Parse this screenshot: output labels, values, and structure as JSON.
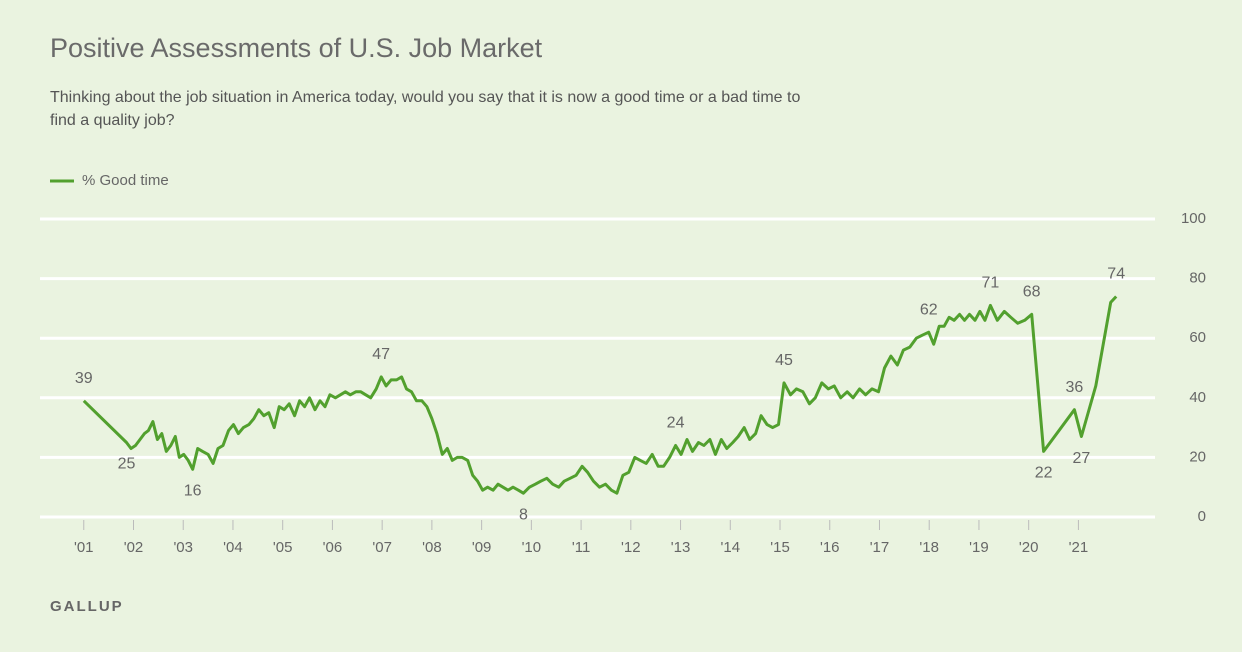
{
  "chart_data": {
    "type": "line",
    "title": "Positive Assessments of U.S. Job Market",
    "subtitle": [
      "Thinking about the job situation in America today, would you say that it is now a good time or a bad time to",
      "find a quality job?"
    ],
    "source": "GALLUP",
    "xlim": [
      2000.12,
      2022.54
    ],
    "xticks": [
      {
        "value": 2001,
        "label": "'01"
      },
      {
        "value": 2002,
        "label": "'02"
      },
      {
        "value": 2003,
        "label": "'03"
      },
      {
        "value": 2004,
        "label": "'04"
      },
      {
        "value": 2005,
        "label": "'05"
      },
      {
        "value": 2006,
        "label": "'06"
      },
      {
        "value": 2007,
        "label": "'07"
      },
      {
        "value": 2008,
        "label": "'08"
      },
      {
        "value": 2009,
        "label": "'09"
      },
      {
        "value": 2010,
        "label": "'10"
      },
      {
        "value": 2011,
        "label": "'11"
      },
      {
        "value": 2012,
        "label": "'12"
      },
      {
        "value": 2013,
        "label": "'13"
      },
      {
        "value": 2014,
        "label": "'14"
      },
      {
        "value": 2015,
        "label": "'15"
      },
      {
        "value": 2016,
        "label": "'16"
      },
      {
        "value": 2017,
        "label": "'17"
      },
      {
        "value": 2018,
        "label": "'18"
      },
      {
        "value": 2019,
        "label": "'19"
      },
      {
        "value": 2020,
        "label": "'20"
      },
      {
        "value": 2021,
        "label": "'21"
      }
    ],
    "ylim": [
      0,
      100
    ],
    "yticks": [
      0,
      20,
      40,
      60,
      80,
      100
    ],
    "grid": true,
    "legend": "top-left",
    "x": [
      2001.0,
      2001.86,
      2001.95,
      2002.04,
      2002.13,
      2002.22,
      2002.3,
      2002.39,
      2002.48,
      2002.57,
      2002.66,
      2002.75,
      2002.84,
      2002.92,
      2003.01,
      2003.1,
      2003.19,
      2003.29,
      2003.39,
      2003.5,
      2003.6,
      2003.7,
      2003.8,
      2003.91,
      2004.01,
      2004.11,
      2004.21,
      2004.32,
      2004.42,
      2004.52,
      2004.62,
      2004.72,
      2004.83,
      2004.93,
      2005.03,
      2005.13,
      2005.24,
      2005.34,
      2005.44,
      2005.54,
      2005.65,
      2005.75,
      2005.85,
      2005.95,
      2006.06,
      2006.16,
      2006.26,
      2006.36,
      2006.47,
      2006.57,
      2006.67,
      2006.77,
      2006.88,
      2006.98,
      2007.08,
      2007.18,
      2007.29,
      2007.39,
      2007.49,
      2007.59,
      2007.69,
      2007.8,
      2007.9,
      2008.0,
      2008.1,
      2008.21,
      2008.31,
      2008.41,
      2008.51,
      2008.61,
      2008.72,
      2008.82,
      2008.92,
      2009.02,
      2009.12,
      2009.23,
      2009.33,
      2009.43,
      2009.53,
      2009.63,
      2009.74,
      2009.84,
      2009.96,
      2010.08,
      2010.19,
      2010.31,
      2010.43,
      2010.55,
      2010.66,
      2010.78,
      2010.9,
      2011.02,
      2011.13,
      2011.25,
      2011.37,
      2011.49,
      2011.61,
      2011.72,
      2011.84,
      2011.96,
      2012.08,
      2012.19,
      2012.31,
      2012.43,
      2012.55,
      2012.66,
      2012.78,
      2012.9,
      2013.01,
      2013.13,
      2013.24,
      2013.36,
      2013.47,
      2013.59,
      2013.7,
      2013.82,
      2013.93,
      2014.05,
      2014.16,
      2014.28,
      2014.39,
      2014.51,
      2014.62,
      2014.74,
      2014.85,
      2014.97,
      2015.08,
      2015.21,
      2015.33,
      2015.46,
      2015.59,
      2015.71,
      2015.84,
      2015.97,
      2016.09,
      2016.22,
      2016.35,
      2016.47,
      2016.6,
      2016.72,
      2016.85,
      2016.98,
      2017.1,
      2017.23,
      2017.36,
      2017.48,
      2017.61,
      2017.74,
      2017.86,
      2017.99,
      2018.09,
      2018.2,
      2018.3,
      2018.4,
      2018.5,
      2018.61,
      2018.71,
      2018.81,
      2018.92,
      2019.02,
      2019.12,
      2019.23,
      2019.37,
      2019.51,
      2019.64,
      2019.78,
      2019.92,
      2020.06,
      2020.3,
      2020.92,
      2021.06,
      2021.35,
      2021.65,
      2021.76
    ],
    "series": [
      {
        "name": "% Good time",
        "color": "#52a02e",
        "values": [
          39,
          25,
          23,
          24,
          26,
          28,
          29,
          32,
          26,
          28,
          22,
          24,
          27,
          20,
          21,
          19,
          16,
          23,
          22,
          21,
          18,
          23,
          24,
          29,
          31,
          28,
          30,
          31,
          33,
          36,
          34,
          35,
          30,
          37,
          36,
          38,
          34,
          39,
          37,
          40,
          36,
          39,
          37,
          41,
          40,
          41,
          42,
          41,
          42,
          42,
          41,
          40,
          43,
          47,
          44,
          46,
          46,
          47,
          43,
          42,
          39,
          39,
          37,
          33,
          28,
          21,
          23,
          19,
          20,
          20,
          19,
          14,
          12,
          9,
          10,
          9,
          11,
          10,
          9,
          10,
          9,
          8,
          10,
          11,
          12,
          13,
          11,
          10,
          12,
          13,
          14,
          17,
          15,
          12,
          10,
          11,
          9,
          8,
          14,
          15,
          20,
          19,
          18,
          21,
          17,
          17,
          20,
          24,
          21,
          26,
          22,
          25,
          24,
          26,
          21,
          26,
          23,
          25,
          27,
          30,
          26,
          28,
          34,
          31,
          30,
          31,
          45,
          41,
          43,
          42,
          38,
          40,
          45,
          43,
          44,
          40,
          42,
          40,
          43,
          41,
          43,
          42,
          50,
          54,
          51,
          56,
          57,
          60,
          61,
          62,
          58,
          64,
          64,
          67,
          66,
          68,
          66,
          68,
          66,
          69,
          66,
          71,
          66,
          69,
          67,
          65,
          66,
          68,
          22,
          36,
          27,
          44,
          72,
          74
        ],
        "value_labels": [
          "39",
          "25",
          null,
          null,
          null,
          null,
          null,
          null,
          null,
          null,
          null,
          null,
          null,
          null,
          null,
          null,
          "16",
          null,
          null,
          null,
          null,
          null,
          null,
          null,
          null,
          null,
          null,
          null,
          null,
          null,
          null,
          null,
          null,
          null,
          null,
          null,
          null,
          null,
          null,
          null,
          null,
          null,
          null,
          null,
          null,
          null,
          null,
          null,
          null,
          null,
          null,
          null,
          null,
          "47",
          null,
          null,
          null,
          null,
          null,
          null,
          null,
          null,
          null,
          null,
          null,
          null,
          null,
          null,
          null,
          null,
          null,
          null,
          null,
          null,
          null,
          null,
          null,
          null,
          null,
          null,
          null,
          "8",
          null,
          null,
          null,
          null,
          null,
          null,
          null,
          null,
          null,
          null,
          null,
          null,
          null,
          null,
          null,
          null,
          null,
          null,
          null,
          null,
          null,
          null,
          null,
          null,
          null,
          "24",
          null,
          null,
          null,
          null,
          null,
          null,
          null,
          null,
          null,
          null,
          null,
          null,
          null,
          null,
          null,
          null,
          null,
          null,
          "45",
          null,
          null,
          null,
          null,
          null,
          null,
          null,
          null,
          null,
          null,
          null,
          null,
          null,
          null,
          null,
          null,
          null,
          null,
          null,
          null,
          null,
          null,
          "62",
          null,
          null,
          null,
          null,
          null,
          null,
          null,
          null,
          null,
          null,
          null,
          "71",
          null,
          null,
          null,
          null,
          null,
          "68",
          "22",
          "36",
          "27",
          null,
          null,
          "74"
        ]
      }
    ]
  }
}
